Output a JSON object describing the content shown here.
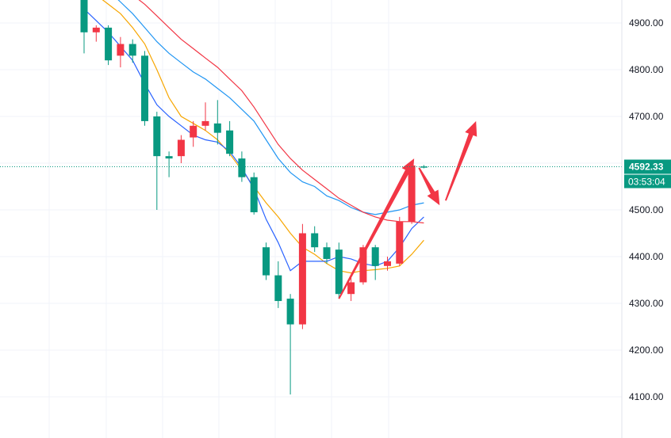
{
  "chart_data": {
    "type": "candlestick",
    "title": "",
    "xlabel": "",
    "ylabel": "",
    "ylim": [
      4065,
      4945
    ],
    "y_ticks": [
      {
        "value": 4900,
        "label": "4900.00"
      },
      {
        "value": 4800,
        "label": "4800.00"
      },
      {
        "value": 4700,
        "label": "4700.00"
      },
      {
        "value": 4600,
        "label": "4600.00"
      },
      {
        "value": 4500,
        "label": "4500.00"
      },
      {
        "value": 4400,
        "label": "4400.00"
      },
      {
        "value": 4300,
        "label": "4300.00"
      },
      {
        "value": 4200,
        "label": "4200.00"
      },
      {
        "value": 4100,
        "label": "4100.00"
      }
    ],
    "grid": true,
    "current_price": {
      "value": 4592.33,
      "label": "4592.33",
      "timer": "03:53:04"
    },
    "colors": {
      "up": "#f23645",
      "down": "#089981",
      "last_line": "#089981",
      "arrow": "#f23645"
    },
    "candles": [
      {
        "o": 4965,
        "h": 4980,
        "l": 4835,
        "c": 4880
      },
      {
        "o": 4880,
        "h": 4895,
        "l": 4860,
        "c": 4890
      },
      {
        "o": 4890,
        "h": 4895,
        "l": 4810,
        "c": 4820
      },
      {
        "o": 4830,
        "h": 4870,
        "l": 4805,
        "c": 4855
      },
      {
        "o": 4855,
        "h": 4865,
        "l": 4815,
        "c": 4830
      },
      {
        "o": 4830,
        "h": 4840,
        "l": 4680,
        "c": 4690
      },
      {
        "o": 4700,
        "h": 4710,
        "l": 4500,
        "c": 4615
      },
      {
        "o": 4615,
        "h": 4625,
        "l": 4570,
        "c": 4610
      },
      {
        "o": 4615,
        "h": 4660,
        "l": 4600,
        "c": 4650
      },
      {
        "o": 4655,
        "h": 4690,
        "l": 4635,
        "c": 4680
      },
      {
        "o": 4680,
        "h": 4730,
        "l": 4670,
        "c": 4690
      },
      {
        "o": 4685,
        "h": 4735,
        "l": 4640,
        "c": 4665
      },
      {
        "o": 4670,
        "h": 4690,
        "l": 4615,
        "c": 4620
      },
      {
        "o": 4610,
        "h": 4625,
        "l": 4560,
        "c": 4570
      },
      {
        "o": 4570,
        "h": 4580,
        "l": 4490,
        "c": 4495
      },
      {
        "o": 4420,
        "h": 4430,
        "l": 4350,
        "c": 4360
      },
      {
        "o": 4360,
        "h": 4390,
        "l": 4290,
        "c": 4305
      },
      {
        "o": 4310,
        "h": 4320,
        "l": 4105,
        "c": 4255
      },
      {
        "o": 4255,
        "h": 4470,
        "l": 4245,
        "c": 4450
      },
      {
        "o": 4450,
        "h": 4465,
        "l": 4410,
        "c": 4420
      },
      {
        "o": 4420,
        "h": 4430,
        "l": 4385,
        "c": 4395
      },
      {
        "o": 4415,
        "h": 4430,
        "l": 4310,
        "c": 4320
      },
      {
        "o": 4320,
        "h": 4355,
        "l": 4305,
        "c": 4345
      },
      {
        "o": 4345,
        "h": 4425,
        "l": 4340,
        "c": 4420
      },
      {
        "o": 4420,
        "h": 4425,
        "l": 4350,
        "c": 4380
      },
      {
        "o": 4380,
        "h": 4400,
        "l": 4370,
        "c": 4390
      },
      {
        "o": 4385,
        "h": 4485,
        "l": 4380,
        "c": 4475
      },
      {
        "o": 4475,
        "h": 4600,
        "l": 4470,
        "c": 4595
      },
      {
        "o": 4593,
        "h": 4596,
        "l": 4589,
        "c": 4592.33
      }
    ],
    "moving_averages": [
      {
        "color": "#f7a600",
        "values": [
          4975,
          4960,
          4940,
          4920,
          4890,
          4855,
          4800,
          4740,
          4700,
          4685,
          4670,
          4650,
          4620,
          4585,
          4550,
          4515,
          4485,
          4450,
          4420,
          4405,
          4385,
          4370,
          4365,
          4370,
          4372,
          4375,
          4380,
          4405,
          4435
        ]
      },
      {
        "color": "#2962ff",
        "values": [
          4930,
          4905,
          4880,
          4850,
          4820,
          4770,
          4725,
          4700,
          4680,
          4660,
          4650,
          4645,
          4625,
          4590,
          4545,
          4480,
          4430,
          4370,
          4390,
          4390,
          4390,
          4400,
          4395,
          4385,
          4380,
          4390,
          4420,
          4460,
          4485
        ]
      },
      {
        "color": "#2196f3",
        "values": [
          5000,
          4990,
          4970,
          4945,
          4920,
          4890,
          4860,
          4835,
          4815,
          4795,
          4780,
          4760,
          4740,
          4715,
          4690,
          4650,
          4610,
          4580,
          4560,
          4550,
          4530,
          4520,
          4505,
          4495,
          4490,
          4495,
          4500,
          4510,
          4515
        ]
      },
      {
        "color": "#f23645",
        "values": [
          5000,
          5000,
          4995,
          4980,
          4960,
          4940,
          4915,
          4890,
          4865,
          4845,
          4825,
          4805,
          4780,
          4755,
          4720,
          4680,
          4640,
          4610,
          4585,
          4565,
          4545,
          4525,
          4510,
          4495,
          4485,
          4478,
          4475,
          4475,
          4472
        ]
      }
    ],
    "annotations": [
      {
        "type": "arrow",
        "points": [
          [
            21,
            4310
          ],
          [
            27.2,
            4610
          ]
        ]
      },
      {
        "type": "arrow",
        "points": [
          [
            27.6,
            4590
          ],
          [
            29.3,
            4510
          ]
        ]
      },
      {
        "type": "arrow",
        "points": [
          [
            29.8,
            4520
          ],
          [
            32.3,
            4690
          ]
        ]
      }
    ]
  }
}
